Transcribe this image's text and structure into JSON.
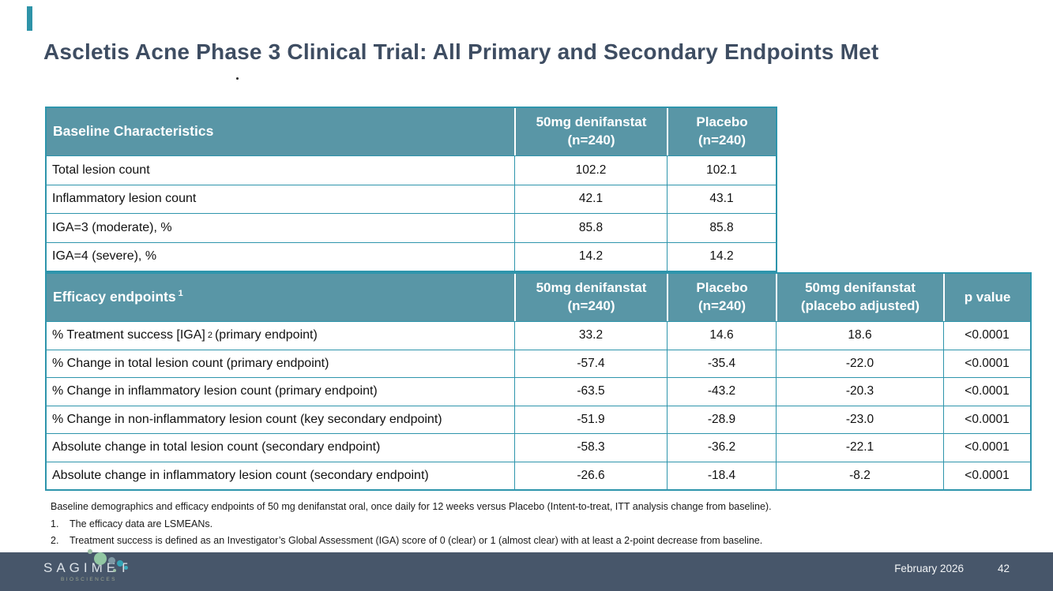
{
  "slide": {
    "title": "Ascletis Acne Phase 3 Clinical Trial: All Primary and Secondary Endpoints Met",
    "accent_color": "#2E93A8",
    "table_header_color": "#5996A6",
    "table_border_color": "#2E95AC"
  },
  "baseline_table": {
    "title": "Baseline Characteristics",
    "columns": [
      {
        "line1": "50mg denifanstat",
        "line2": "(n=240)"
      },
      {
        "line1": "Placebo",
        "line2": "(n=240)"
      }
    ],
    "rows": [
      {
        "label": "Total lesion count",
        "values": [
          "102.2",
          "102.1"
        ]
      },
      {
        "label": "Inflammatory lesion count",
        "values": [
          "42.1",
          "43.1"
        ]
      },
      {
        "label": "IGA=3 (moderate), %",
        "values": [
          "85.8",
          "85.8"
        ]
      },
      {
        "label": "IGA=4 (severe), %",
        "values": [
          "14.2",
          "14.2"
        ]
      }
    ]
  },
  "efficacy_table": {
    "title": "Efficacy endpoints",
    "title_sup": "1",
    "columns": [
      {
        "line1": "50mg denifanstat",
        "line2": "(n=240)"
      },
      {
        "line1": "Placebo",
        "line2": "(n=240)"
      },
      {
        "line1": "50mg denifanstat",
        "line2": "(placebo adjusted)"
      },
      {
        "line1": "p value",
        "line2": ""
      }
    ],
    "rows": [
      {
        "label_pre": "% Treatment success [IGA]",
        "sup": "2",
        "label_post": "(primary endpoint)",
        "values": [
          "33.2",
          "14.6",
          "18.6",
          "<0.0001"
        ]
      },
      {
        "label_pre": "% Change in total lesion count (primary endpoint)",
        "sup": "",
        "label_post": "",
        "values": [
          "-57.4",
          "-35.4",
          "-22.0",
          "<0.0001"
        ]
      },
      {
        "label_pre": "% Change in inflammatory lesion count (primary endpoint)",
        "sup": "",
        "label_post": "",
        "values": [
          "-63.5",
          "-43.2",
          "-20.3",
          "<0.0001"
        ]
      },
      {
        "label_pre": "% Change in non-inflammatory lesion count (key secondary endpoint)",
        "sup": "",
        "label_post": "",
        "values": [
          "-51.9",
          "-28.9",
          "-23.0",
          "<0.0001"
        ]
      },
      {
        "label_pre": "Absolute change in total lesion count (secondary endpoint)",
        "sup": "",
        "label_post": "",
        "values": [
          "-58.3",
          "-36.2",
          "-22.1",
          "<0.0001"
        ]
      },
      {
        "label_pre": "Absolute change in inflammatory lesion count (secondary endpoint)",
        "sup": "",
        "label_post": "",
        "values": [
          "-26.6",
          "-18.4",
          "-8.2",
          "<0.0001"
        ]
      }
    ]
  },
  "footnotes": {
    "intro": "Baseline demographics and efficacy endpoints of 50 mg denifanstat oral, once daily for 12 weeks versus Placebo (Intent-to-treat, ITT analysis change from baseline).",
    "items": [
      {
        "num": "1.",
        "text": "The efficacy data are LSMEANs."
      },
      {
        "num": "2.",
        "text": "Treatment success is defined as an Investigator’s Global Assessment (IGA) score of 0 (clear) or 1 (almost clear) with at least a 2-point decrease from baseline."
      }
    ]
  },
  "footer": {
    "logo_text": "SAGIMET",
    "logo_subtext": "BIOSCIENCES",
    "date": "February 2026",
    "page_number": "42",
    "bar_color": "#47566A"
  }
}
